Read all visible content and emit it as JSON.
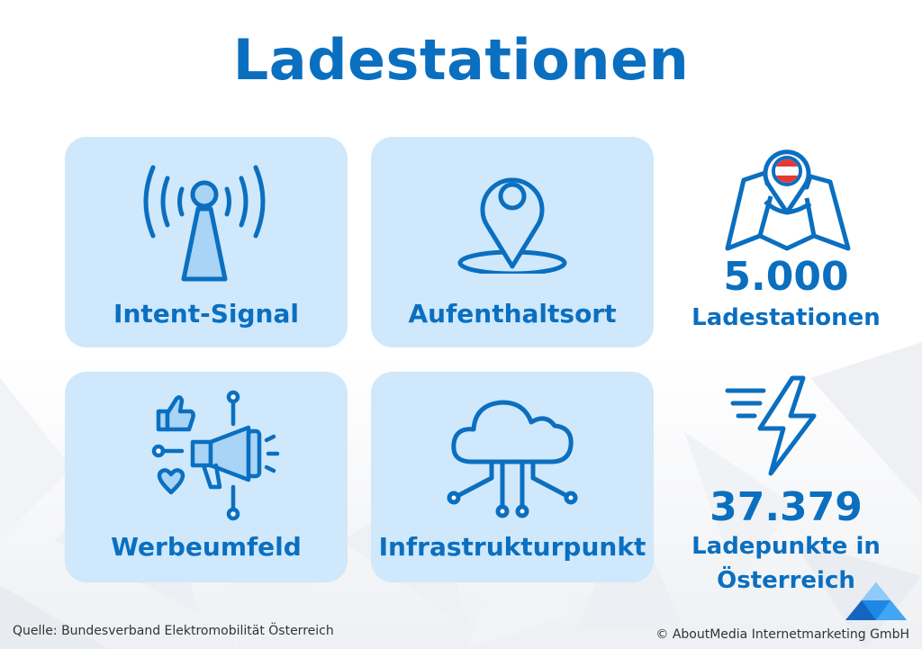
{
  "title": "Ladestationen",
  "cards": {
    "intent": {
      "label": "Intent-Signal",
      "icon": "signal-tower-icon"
    },
    "location": {
      "label": "Aufenthaltsort",
      "icon": "location-pin-icon"
    },
    "advertising": {
      "label": "Werbeumfeld",
      "icon": "megaphone-icon"
    },
    "infrastructure": {
      "label": "Infrastrukturpunkt",
      "icon": "cloud-network-icon"
    }
  },
  "stats": {
    "stations": {
      "value": "5.000",
      "label": "Ladestationen",
      "icon": "austria-map-pin-icon"
    },
    "points": {
      "value": "37.379",
      "label_line1": "Ladepunkte in",
      "label_line2": "Österreich",
      "icon": "lightning-icon"
    }
  },
  "footer": {
    "source": "Quelle: Bundesverband Elektromobilität Österreich",
    "copyright": "© AboutMedia Internetmarketing GmbH"
  },
  "colors": {
    "accent": "#0b6fc0",
    "card_bg": "#cfe8fb",
    "flag_red": "#e53935"
  }
}
